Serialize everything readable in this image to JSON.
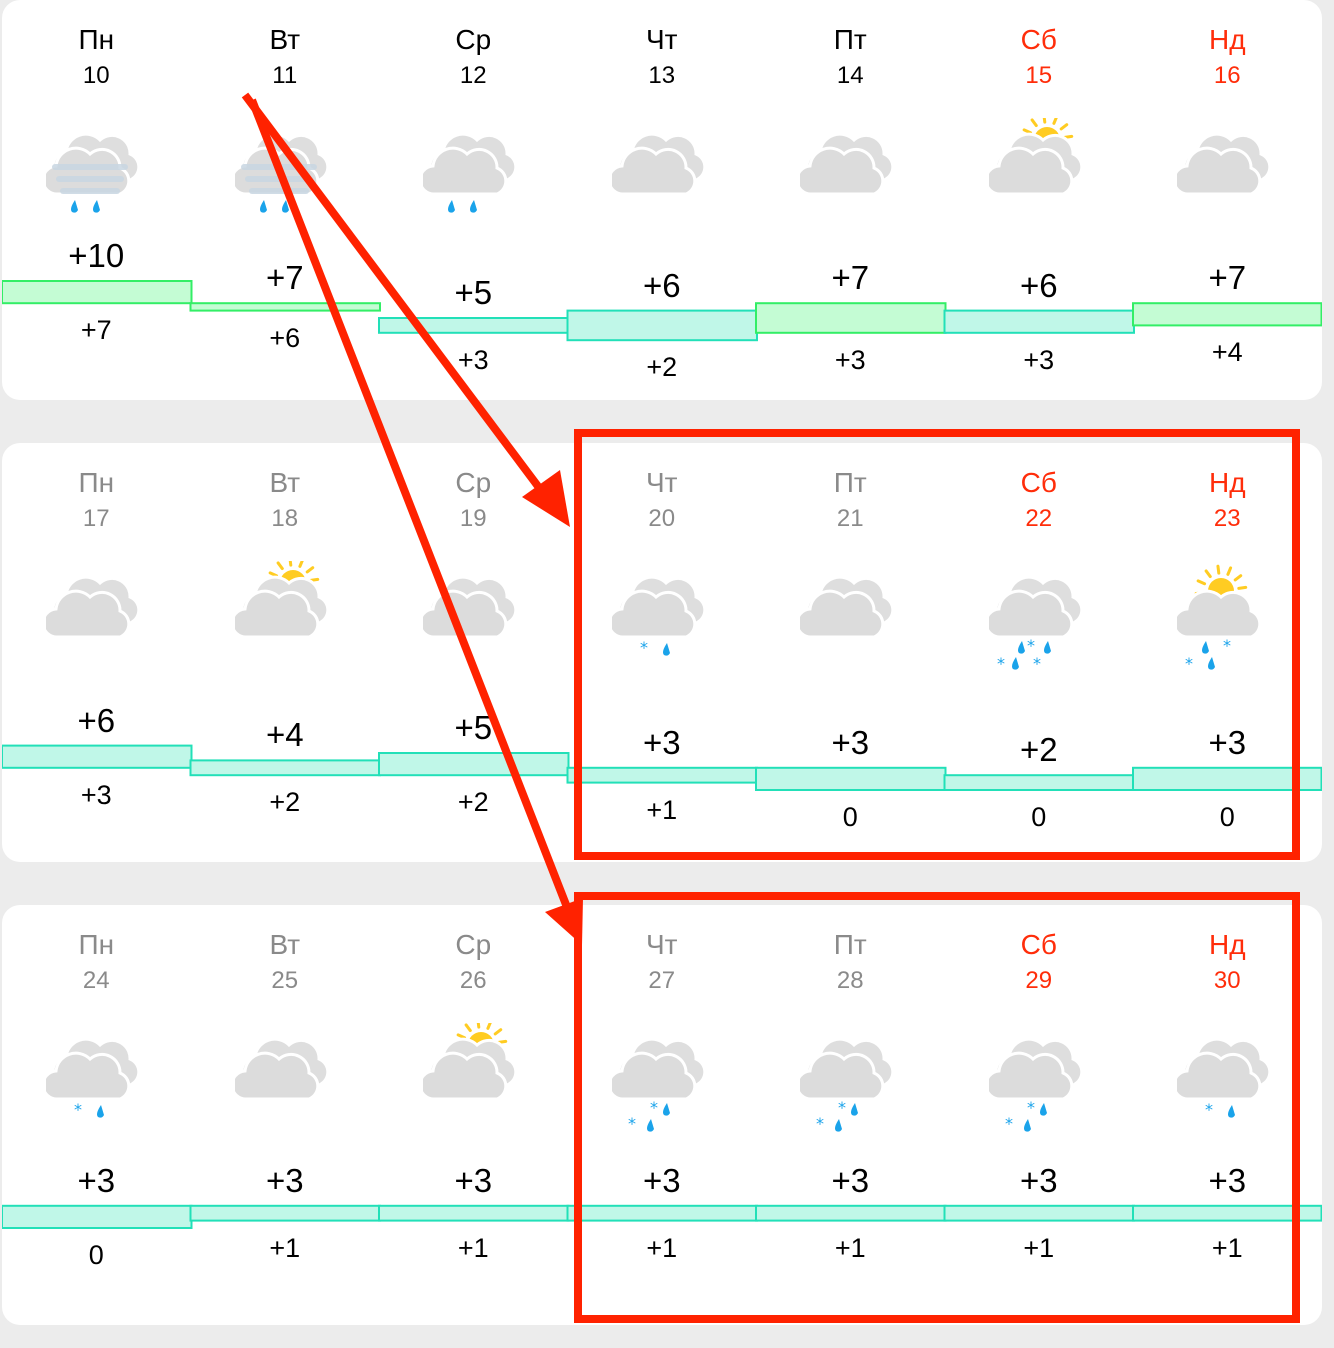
{
  "colors": {
    "weekend": "#ff2d0a",
    "past": "#8a8a8a",
    "annotation": "#ff2200",
    "band_warm_fill": "#c4fcd4",
    "band_warm_stroke": "#33ee66",
    "band_cool_fill": "#c0f7e8",
    "band_cool_stroke": "#22e0b8"
  },
  "weeks": [
    {
      "days": [
        {
          "name": "Пн",
          "num": "10",
          "weekend": false,
          "past": false,
          "icon": "fog-rain",
          "max": "+10",
          "min": "+7"
        },
        {
          "name": "Вт",
          "num": "11",
          "weekend": false,
          "past": false,
          "icon": "fog-rain",
          "max": "+7",
          "min": "+6"
        },
        {
          "name": "Ср",
          "num": "12",
          "weekend": false,
          "past": false,
          "icon": "cloud-rain",
          "max": "+5",
          "min": "+3"
        },
        {
          "name": "Чт",
          "num": "13",
          "weekend": false,
          "past": false,
          "icon": "cloud",
          "max": "+6",
          "min": "+2"
        },
        {
          "name": "Пт",
          "num": "14",
          "weekend": false,
          "past": false,
          "icon": "cloud",
          "max": "+7",
          "min": "+3"
        },
        {
          "name": "Сб",
          "num": "15",
          "weekend": true,
          "past": false,
          "icon": "partly-sunny",
          "max": "+6",
          "min": "+3"
        },
        {
          "name": "Нд",
          "num": "16",
          "weekend": true,
          "past": false,
          "icon": "cloud",
          "max": "+7",
          "min": "+4"
        }
      ]
    },
    {
      "days": [
        {
          "name": "Пн",
          "num": "17",
          "weekend": false,
          "past": true,
          "icon": "cloud",
          "max": "+6",
          "min": "+3"
        },
        {
          "name": "Вт",
          "num": "18",
          "weekend": false,
          "past": true,
          "icon": "partly-sunny",
          "max": "+4",
          "min": "+2"
        },
        {
          "name": "Ср",
          "num": "19",
          "weekend": false,
          "past": true,
          "icon": "cloud",
          "max": "+5",
          "min": "+2"
        },
        {
          "name": "Чт",
          "num": "20",
          "weekend": false,
          "past": true,
          "icon": "cloud-sleet-light",
          "max": "+3",
          "min": "+1"
        },
        {
          "name": "Пт",
          "num": "21",
          "weekend": false,
          "past": true,
          "icon": "cloud",
          "max": "+3",
          "min": "0"
        },
        {
          "name": "Сб",
          "num": "22",
          "weekend": true,
          "past": false,
          "icon": "cloud-sleet-heavy",
          "max": "+2",
          "min": "0"
        },
        {
          "name": "Нд",
          "num": "23",
          "weekend": true,
          "past": false,
          "icon": "sun-cloud-sleet",
          "max": "+3",
          "min": "0"
        }
      ]
    },
    {
      "days": [
        {
          "name": "Пн",
          "num": "24",
          "weekend": false,
          "past": true,
          "icon": "cloud-sleet-light",
          "max": "+3",
          "min": "0"
        },
        {
          "name": "Вт",
          "num": "25",
          "weekend": false,
          "past": true,
          "icon": "cloud",
          "max": "+3",
          "min": "+1"
        },
        {
          "name": "Ср",
          "num": "26",
          "weekend": false,
          "past": true,
          "icon": "partly-sunny",
          "max": "+3",
          "min": "+1"
        },
        {
          "name": "Чт",
          "num": "27",
          "weekend": false,
          "past": true,
          "icon": "cloud-sleet-medium",
          "max": "+3",
          "min": "+1"
        },
        {
          "name": "Пт",
          "num": "28",
          "weekend": false,
          "past": true,
          "icon": "cloud-sleet-medium",
          "max": "+3",
          "min": "+1"
        },
        {
          "name": "Сб",
          "num": "29",
          "weekend": true,
          "past": false,
          "icon": "cloud-sleet-medium",
          "max": "+3",
          "min": "+1"
        },
        {
          "name": "Нд",
          "num": "30",
          "weekend": true,
          "past": false,
          "icon": "cloud-sleet-light",
          "max": "+3",
          "min": "+1"
        }
      ]
    }
  ]
}
